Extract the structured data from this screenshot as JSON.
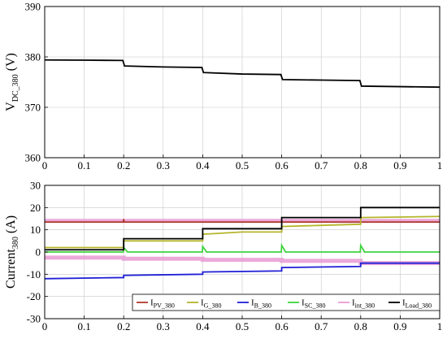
{
  "colors": {
    "I_PV": "#b03a2e",
    "I_G": "#b5b52a",
    "I_B": "#1f1fd6",
    "I_SC": "#3fd43f",
    "I_int": "#e79ad3",
    "I_Load": "#000000",
    "V_DC": "#000000",
    "grid": "#c8c8c8"
  },
  "chart_data": [
    {
      "type": "line",
      "ylabel_main": "V",
      "ylabel_sub": "DC_380",
      "ylabel_unit": " (V)",
      "xlim": [
        0,
        1
      ],
      "ylim": [
        360,
        390
      ],
      "xticks": [
        "0",
        "0.1",
        "0.2",
        "0.3",
        "0.4",
        "0.5",
        "0.6",
        "0.7",
        "0.8",
        "0.9",
        "1"
      ],
      "yticks": [
        "360",
        "370",
        "380",
        "390"
      ],
      "grid": true,
      "series": [
        {
          "key": "V_DC",
          "x": [
            0,
            0.1,
            0.198,
            0.202,
            0.3,
            0.398,
            0.402,
            0.5,
            0.598,
            0.602,
            0.7,
            0.798,
            0.802,
            0.9,
            1.0
          ],
          "y": [
            379.4,
            379.35,
            379.3,
            378.2,
            378.0,
            377.9,
            376.9,
            376.6,
            376.5,
            375.5,
            375.4,
            375.3,
            374.2,
            374.1,
            374.0
          ]
        }
      ]
    },
    {
      "type": "line",
      "ylabel_main": "Current",
      "ylabel_sub": "380",
      "ylabel_unit": " (A)",
      "xlim": [
        0,
        1
      ],
      "ylim": [
        -30,
        30
      ],
      "xticks": [
        "0",
        "0.1",
        "0.2",
        "0.3",
        "0.4",
        "0.5",
        "0.6",
        "0.7",
        "0.8",
        "0.9",
        "1"
      ],
      "yticks": [
        "-30",
        "-20",
        "-10",
        "0",
        "10",
        "20",
        "30"
      ],
      "grid": true,
      "legend_position": "bottom",
      "series": [
        {
          "key": "I_int",
          "band": true,
          "x": [
            0,
            0.2,
            0.2,
            0.4,
            0.4,
            0.6,
            0.6,
            0.8,
            0.8,
            1.0
          ],
          "y": [
            14,
            14,
            14,
            14,
            14,
            14,
            14,
            14,
            14,
            14
          ]
        },
        {
          "key": "I_int_low",
          "band": true,
          "x": [
            0,
            0.2,
            0.2,
            0.4,
            0.4,
            0.6,
            0.6,
            0.8,
            0.8,
            1.0
          ],
          "y": [
            -2.5,
            -2.5,
            -3,
            -3,
            -3.5,
            -3.5,
            -4,
            -4,
            -5,
            -5
          ]
        },
        {
          "key": "I_PV",
          "x": [
            0,
            0.199,
            0.2,
            0.201,
            1.0
          ],
          "y": [
            13.5,
            13.5,
            14.8,
            13.5,
            13.5
          ]
        },
        {
          "key": "I_G",
          "x": [
            0,
            0.2,
            0.2,
            0.4,
            0.4,
            0.5,
            0.6,
            0.6,
            0.7,
            0.8,
            0.8,
            1.0
          ],
          "y": [
            2,
            2,
            5,
            5,
            8,
            9,
            9,
            11.5,
            12,
            12.5,
            15.5,
            16
          ]
        },
        {
          "key": "I_SC",
          "x": [
            0,
            0.199,
            0.2,
            0.21,
            0.399,
            0.4,
            0.41,
            0.599,
            0.6,
            0.61,
            0.799,
            0.8,
            0.81,
            1.0
          ],
          "y": [
            0,
            0,
            2,
            0,
            0,
            2.5,
            0,
            0,
            3,
            0,
            0,
            3,
            0,
            0
          ]
        },
        {
          "key": "I_B",
          "x": [
            0,
            0.2,
            0.2,
            0.4,
            0.4,
            0.6,
            0.6,
            0.8,
            0.8,
            1.0
          ],
          "y": [
            -12,
            -11.5,
            -10.5,
            -10,
            -9,
            -8.5,
            -7,
            -6.5,
            -5,
            -5
          ]
        },
        {
          "key": "I_Load",
          "x": [
            0,
            0.2,
            0.2,
            0.4,
            0.4,
            0.6,
            0.6,
            0.8,
            0.8,
            1.0
          ],
          "y": [
            1,
            1,
            6,
            6,
            10.5,
            10.5,
            15.5,
            15.5,
            20,
            20
          ]
        }
      ],
      "legend": [
        {
          "key": "I_PV",
          "main": "I",
          "sub": "PV_380"
        },
        {
          "key": "I_G",
          "main": "I",
          "sub": "G_380"
        },
        {
          "key": "I_B",
          "main": "I",
          "sub": "B_380"
        },
        {
          "key": "I_SC",
          "main": "I",
          "sub": "SC_380"
        },
        {
          "key": "I_int",
          "main": "I",
          "sub": "int_380"
        },
        {
          "key": "I_Load",
          "main": "I",
          "sub": "Load_380"
        }
      ]
    }
  ]
}
